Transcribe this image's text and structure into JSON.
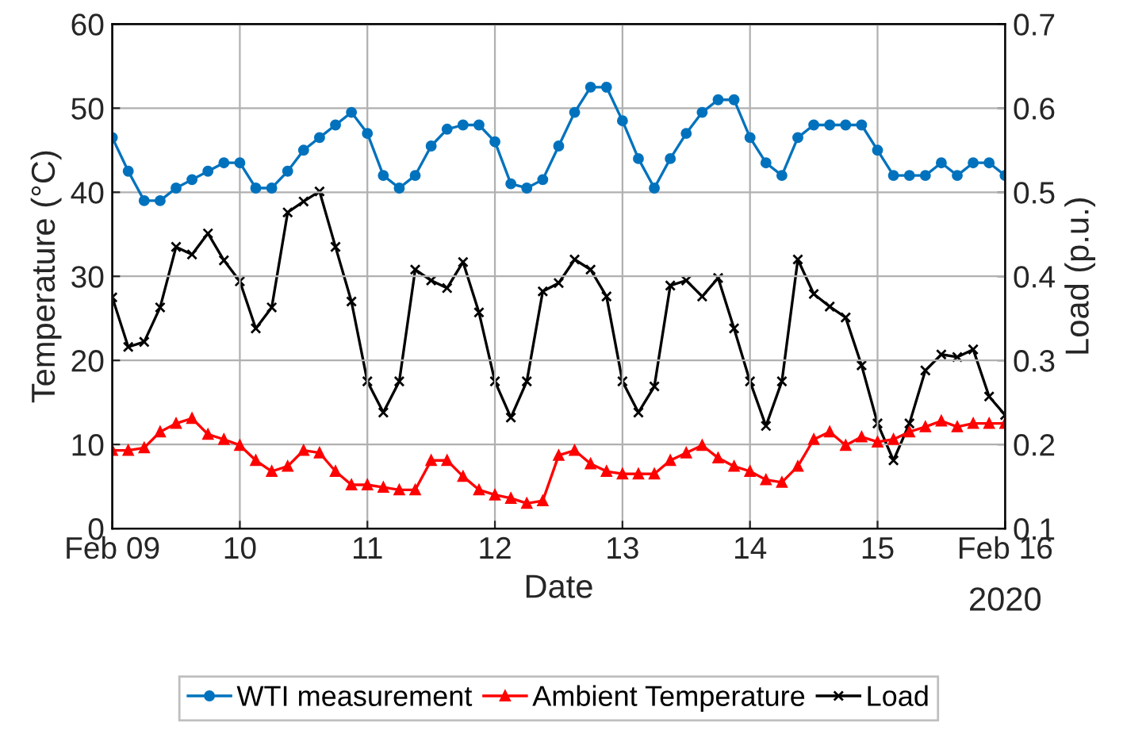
{
  "chart_data": {
    "type": "line",
    "xlabel": "Date",
    "ylabel": "Temperature (°C)",
    "y2label": "Load (p.u.)",
    "x": [
      "2020-02-09T00:00",
      "2020-02-09T03:00",
      "2020-02-09T06:00",
      "2020-02-09T09:00",
      "2020-02-09T12:00",
      "2020-02-09T15:00",
      "2020-02-09T18:00",
      "2020-02-09T21:00",
      "2020-02-10T00:00",
      "2020-02-10T03:00",
      "2020-02-10T06:00",
      "2020-02-10T09:00",
      "2020-02-10T12:00",
      "2020-02-10T15:00",
      "2020-02-10T18:00",
      "2020-02-10T21:00",
      "2020-02-11T00:00",
      "2020-02-11T03:00",
      "2020-02-11T06:00",
      "2020-02-11T09:00",
      "2020-02-11T12:00",
      "2020-02-11T15:00",
      "2020-02-11T18:00",
      "2020-02-11T21:00",
      "2020-02-12T00:00",
      "2020-02-12T03:00",
      "2020-02-12T06:00",
      "2020-02-12T09:00",
      "2020-02-12T12:00",
      "2020-02-12T15:00",
      "2020-02-12T18:00",
      "2020-02-12T21:00",
      "2020-02-13T00:00",
      "2020-02-13T03:00",
      "2020-02-13T06:00",
      "2020-02-13T09:00",
      "2020-02-13T12:00",
      "2020-02-13T15:00",
      "2020-02-13T18:00",
      "2020-02-13T21:00",
      "2020-02-14T00:00",
      "2020-02-14T03:00",
      "2020-02-14T06:00",
      "2020-02-14T09:00",
      "2020-02-14T12:00",
      "2020-02-14T15:00",
      "2020-02-14T18:00",
      "2020-02-14T21:00",
      "2020-02-15T00:00",
      "2020-02-15T03:00",
      "2020-02-15T06:00",
      "2020-02-15T09:00",
      "2020-02-15T12:00",
      "2020-02-15T15:00",
      "2020-02-15T18:00",
      "2020-02-15T21:00",
      "2020-02-16T00:00"
    ],
    "series": [
      {
        "name": "WTI measurement",
        "color": "#0072bd",
        "marker": "circle",
        "values": [
          46.5,
          42.5,
          39,
          39,
          40.5,
          41.5,
          42.5,
          43.5,
          43.5,
          40.5,
          40.5,
          42.5,
          45,
          46.5,
          48,
          49.5,
          47,
          42,
          40.5,
          42,
          45.5,
          47.5,
          48,
          48,
          46,
          41,
          40.5,
          41.5,
          45.5,
          49.5,
          52.5,
          52.5,
          48.5,
          44,
          40.5,
          44,
          47,
          49.5,
          51,
          51,
          46.5,
          43.5,
          42,
          46.5,
          48,
          48,
          48,
          48,
          45,
          42,
          42,
          42,
          43.5,
          42,
          43.5,
          43.5,
          42
        ]
      },
      {
        "name": "Ambient Temperature",
        "color": "#ff0000",
        "marker": "triangle",
        "values": [
          9.3,
          9.3,
          9.6,
          11.5,
          12.5,
          13.1,
          11.2,
          10.6,
          9.9,
          8.1,
          6.8,
          7.4,
          9.3,
          9,
          6.8,
          5.2,
          5.2,
          4.9,
          4.6,
          4.6,
          8.1,
          8.1,
          6.2,
          4.6,
          4,
          3.6,
          3,
          3.3,
          8.7,
          9.3,
          7.7,
          6.8,
          6.5,
          6.5,
          6.5,
          8.1,
          9,
          9.9,
          8.4,
          7.4,
          6.8,
          5.8,
          5.5,
          7.4,
          10.6,
          11.5,
          9.9,
          10.9,
          10.3,
          10.6,
          11.5,
          12.1,
          12.8,
          12.1,
          12.5,
          12.5,
          12.5
        ]
      },
      {
        "name": "Load",
        "color": "#000000",
        "marker": "cross",
        "axis": "y2",
        "values": [
          0.375,
          0.316,
          0.322,
          0.363,
          0.435,
          0.426,
          0.451,
          0.419,
          0.394,
          0.338,
          0.363,
          0.476,
          0.489,
          0.501,
          0.435,
          0.37,
          0.275,
          0.238,
          0.275,
          0.408,
          0.395,
          0.386,
          0.417,
          0.357,
          0.275,
          0.232,
          0.275,
          0.382,
          0.392,
          0.42,
          0.408,
          0.376,
          0.275,
          0.238,
          0.269,
          0.389,
          0.395,
          0.376,
          0.398,
          0.338,
          0.275,
          0.222,
          0.275,
          0.42,
          0.379,
          0.364,
          0.351,
          0.294,
          0.225,
          0.181,
          0.225,
          0.288,
          0.307,
          0.304,
          0.313,
          0.257,
          0.235
        ]
      }
    ],
    "xlim": [
      "2020-02-09",
      "2020-02-16"
    ],
    "xticks": [
      {
        "value": "2020-02-09",
        "label": "Feb 09"
      },
      {
        "value": "2020-02-10",
        "label": "10"
      },
      {
        "value": "2020-02-11",
        "label": "11"
      },
      {
        "value": "2020-02-12",
        "label": "12"
      },
      {
        "value": "2020-02-13",
        "label": "13"
      },
      {
        "value": "2020-02-14",
        "label": "14"
      },
      {
        "value": "2020-02-15",
        "label": "15"
      },
      {
        "value": "2020-02-16",
        "label": "Feb 16"
      }
    ],
    "ylim": [
      0,
      60
    ],
    "yticks": [
      0,
      10,
      20,
      30,
      40,
      50,
      60
    ],
    "y2lim": [
      0.1,
      0.7
    ],
    "y2ticks": [
      0.1,
      0.2,
      0.3,
      0.4,
      0.5,
      0.6,
      0.7
    ],
    "grid": true,
    "legend": "bottom",
    "line_style": "solid",
    "annotations": [
      "2020"
    ]
  }
}
